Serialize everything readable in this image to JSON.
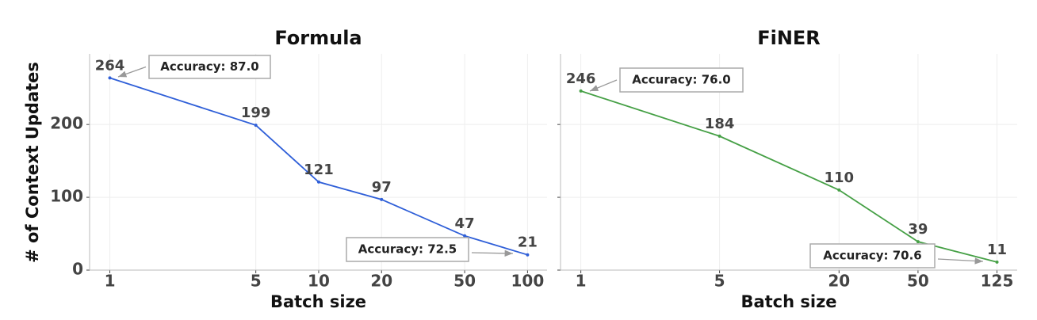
{
  "chart_data": [
    {
      "type": "line",
      "title": "Formula",
      "x_label": "Batch size",
      "y_label": "# of Context Updates",
      "x": [
        1,
        5,
        10,
        20,
        50,
        100
      ],
      "series": [
        {
          "name": "Formula",
          "color": "#2f5fd8",
          "values": [
            264,
            199,
            121,
            97,
            47,
            21
          ]
        }
      ],
      "xscale": "log",
      "xlim": [
        0.8,
        124
      ],
      "xticks": [
        1,
        5,
        10,
        20,
        50,
        100
      ],
      "ylim": [
        0,
        297
      ],
      "yticks": [
        0,
        100,
        200
      ],
      "show_ytick_labels": true,
      "grid": true,
      "annotations": [
        {
          "text": "Accuracy: 87.0",
          "x": 1,
          "y": 264
        },
        {
          "text": "Accuracy: 72.5",
          "x": 100,
          "y": 21
        }
      ]
    },
    {
      "type": "line",
      "title": "FiNER",
      "x_label": "Batch size",
      "x": [
        1,
        5,
        20,
        50,
        125
      ],
      "series": [
        {
          "name": "FiNER",
          "color": "#46a046",
          "values": [
            246,
            184,
            110,
            39,
            11
          ]
        }
      ],
      "xscale": "log",
      "xlim": [
        0.79,
        158
      ],
      "xticks": [
        1,
        5,
        20,
        50,
        125
      ],
      "ylim": [
        0,
        297
      ],
      "yticks": [
        0,
        100,
        200
      ],
      "show_ytick_labels": false,
      "grid": true,
      "annotations": [
        {
          "text": "Accuracy: 76.0",
          "x": 1,
          "y": 246
        },
        {
          "text": "Accuracy: 70.6",
          "x": 125,
          "y": 11
        }
      ]
    }
  ]
}
